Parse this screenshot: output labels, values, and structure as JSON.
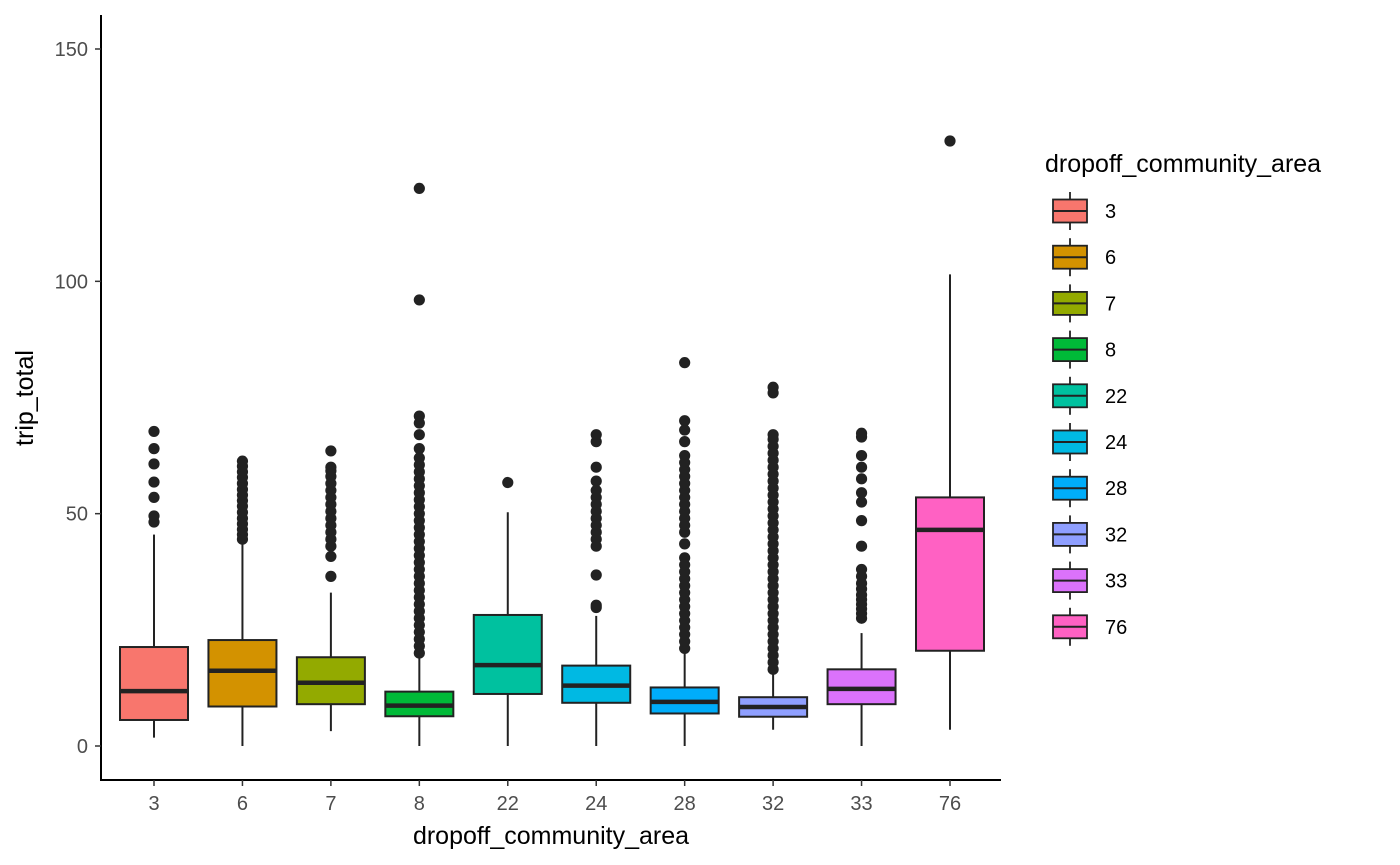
{
  "chart_data": {
    "type": "boxplot",
    "xlabel": "dropoff_community_area",
    "ylabel": "trip_total",
    "ylim": [
      -7.5,
      158
    ],
    "y_ticks": [
      0,
      50,
      100,
      150
    ],
    "grid": false,
    "legend": {
      "title": "dropoff_community_area",
      "placement": "right"
    },
    "categories": [
      "3",
      "6",
      "7",
      "8",
      "22",
      "24",
      "28",
      "32",
      "33",
      "76"
    ],
    "colors": [
      "#F8766D",
      "#D39200",
      "#93AA00",
      "#00BA38",
      "#00C19F",
      "#00B9E3",
      "#00ADFA",
      "#8F9FFF",
      "#DB72FB",
      "#FF61C3"
    ],
    "boxes": [
      {
        "category": "3",
        "min": 1.8,
        "q1": 5.6,
        "median": 11.8,
        "q3": 21.3,
        "max": 45.5,
        "outliers": [
          48.2,
          49.5,
          53.5,
          56.8,
          60.7,
          64.0,
          67.7
        ]
      },
      {
        "category": "6",
        "min": 0,
        "q1": 8.5,
        "median": 16.2,
        "q3": 22.8,
        "max": 43.5,
        "outliers": [
          44.5,
          45.5,
          46.6,
          47.8,
          49.0,
          50.3,
          51.6,
          52.8,
          54.0,
          55.2,
          56.5,
          57.8,
          59.0,
          60.2,
          61.3
        ]
      },
      {
        "category": "7",
        "min": 3.2,
        "q1": 9.0,
        "median": 13.6,
        "q3": 19.1,
        "max": 33.0,
        "outliers": [
          36.5,
          40.8,
          43.0,
          44.5,
          46.0,
          47.5,
          49.0,
          50.5,
          52.0,
          53.5,
          55.0,
          56.5,
          58.0,
          59.2,
          60.0,
          63.5
        ]
      },
      {
        "category": "8",
        "min": 0,
        "q1": 6.4,
        "median": 8.7,
        "q3": 11.7,
        "max": 19.5,
        "outliers": [
          20,
          21.5,
          23,
          24.5,
          26,
          27.5,
          29,
          30.5,
          32,
          33.5,
          35,
          36.5,
          38,
          39.5,
          41,
          42.5,
          44,
          45.5,
          47,
          48.5,
          50,
          51.5,
          53,
          54.5,
          56,
          57.5,
          59,
          60.5,
          62,
          64,
          67,
          69.5,
          71,
          96,
          120
        ]
      },
      {
        "category": "22",
        "min": 0,
        "q1": 11.2,
        "median": 17.4,
        "q3": 28.2,
        "max": 50.3,
        "outliers": [
          56.7
        ]
      },
      {
        "category": "24",
        "min": 0,
        "q1": 9.3,
        "median": 13.0,
        "q3": 17.3,
        "max": 28.0,
        "outliers": [
          29.8,
          30.3,
          36.8,
          43.0,
          44.5,
          46.0,
          47.5,
          49.0,
          50.5,
          52.0,
          53.5,
          55.0,
          57.0,
          60.0,
          65.5,
          67.0
        ]
      },
      {
        "category": "28",
        "min": 0,
        "q1": 7.0,
        "median": 9.5,
        "q3": 12.6,
        "max": 20.5,
        "outliers": [
          21,
          22.5,
          24,
          25.5,
          27,
          28.5,
          30,
          31.5,
          33,
          34.5,
          36,
          37.5,
          39,
          40.5,
          43.5,
          46,
          47.5,
          49,
          50.5,
          52,
          53.5,
          55,
          56.5,
          58,
          59.5,
          61,
          62.5,
          65.5,
          68,
          70,
          82.5
        ]
      },
      {
        "category": "32",
        "min": 3.5,
        "q1": 6.3,
        "median": 8.4,
        "q3": 10.5,
        "max": 15.8,
        "outliers": [
          16.5,
          18,
          19.5,
          21,
          22.5,
          24,
          25.5,
          27,
          28.5,
          30,
          31.5,
          33,
          34.5,
          36,
          37.5,
          39,
          40.5,
          42,
          43.5,
          45,
          46.5,
          48,
          49.5,
          51,
          52.5,
          54,
          55.5,
          57,
          58.5,
          60,
          61.5,
          63,
          64.5,
          66,
          67,
          76,
          77.2
        ]
      },
      {
        "category": "33",
        "min": 0,
        "q1": 9.0,
        "median": 12.3,
        "q3": 16.5,
        "max": 24.3,
        "outliers": [
          27.5,
          28.5,
          29.5,
          30.5,
          31.5,
          32.5,
          33.8,
          35.0,
          36.5,
          38.0,
          43.0,
          48.5,
          52.5,
          54.5,
          57.5,
          60.0,
          62.5,
          66.5,
          67.3
        ]
      },
      {
        "category": "76",
        "min": 3.5,
        "q1": 20.5,
        "median": 46.5,
        "q3": 53.5,
        "max": 101.5,
        "outliers": [
          130.2
        ]
      }
    ]
  }
}
